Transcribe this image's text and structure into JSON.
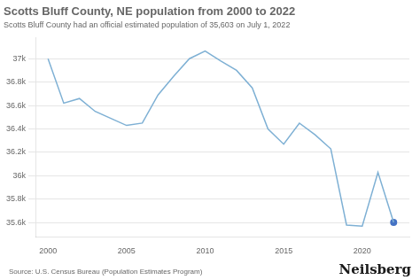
{
  "chart_data": {
    "type": "line",
    "title": "Scotts Bluff County, NE population from 2000 to 2022",
    "subtitle": "Scotts Bluff County had an official estimated population of 35,603 on July 1, 2022",
    "annotations": [
      "Source: U.S. Census Bureau (Population Estimates Program)",
      "Neilsberg"
    ],
    "x": [
      2000,
      2001,
      2002,
      2003,
      2004,
      2005,
      2006,
      2007,
      2008,
      2009,
      2010,
      2011,
      2012,
      2013,
      2014,
      2015,
      2016,
      2017,
      2018,
      2019,
      2020,
      2021,
      2022
    ],
    "series": [
      {
        "type": "line",
        "color": "#7eb0d4",
        "values": [
          36999,
          36620,
          36660,
          36550,
          36490,
          36430,
          36450,
          36690,
          36850,
          37000,
          37065,
          36980,
          36900,
          36750,
          36400,
          36270,
          36450,
          36350,
          36230,
          35580,
          35570,
          36030,
          35603
        ]
      },
      {
        "type": "scatter",
        "color": "#4472c4",
        "values": [
          null,
          null,
          null,
          null,
          null,
          null,
          null,
          null,
          null,
          null,
          null,
          null,
          null,
          null,
          null,
          null,
          null,
          null,
          null,
          null,
          null,
          null,
          35603
        ]
      }
    ],
    "xlim": [
      1999.2,
      2023.0
    ],
    "xticks": [
      2000,
      2005,
      2010,
      2015,
      2020
    ],
    "ylim": [
      35480,
      37180
    ],
    "yticks": [
      {
        "value": 35600,
        "label": "35.6k"
      },
      {
        "value": 35800,
        "label": "35.8k"
      },
      {
        "value": 36000,
        "label": "36k"
      },
      {
        "value": 36200,
        "label": "36.2k"
      },
      {
        "value": 36400,
        "label": "36.4k"
      },
      {
        "value": 36600,
        "label": "36.6k"
      },
      {
        "value": 36800,
        "label": "36.8k"
      },
      {
        "value": 37000,
        "label": "37k"
      }
    ],
    "grid": "y"
  }
}
